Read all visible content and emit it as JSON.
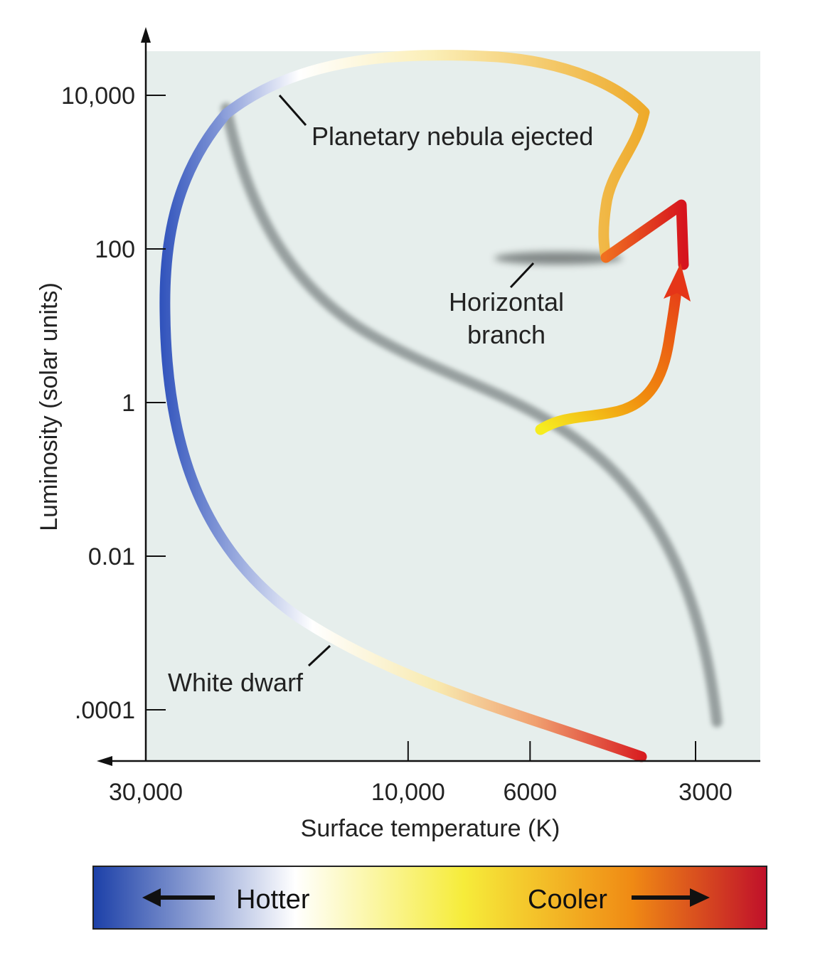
{
  "chart_data": {
    "type": "line",
    "xlabel": "Surface temperature (K)",
    "ylabel": "Luminosity (solar units)",
    "x_scale": "log, reversed",
    "y_scale": "log",
    "x_ticks": [
      {
        "value": 30000,
        "label": "30,000"
      },
      {
        "value": 10000,
        "label": "10,000"
      },
      {
        "value": 6000,
        "label": "6000"
      },
      {
        "value": 3000,
        "label": "3000"
      }
    ],
    "y_ticks": [
      {
        "value": 10000,
        "label": "10,000"
      },
      {
        "value": 100,
        "label": "100"
      },
      {
        "value": 1,
        "label": "1"
      },
      {
        "value": 0.01,
        "label": "0.01"
      },
      {
        "value": 0.0001,
        "label": ".0001"
      }
    ],
    "annotations": [
      {
        "text": "Planetary nebula ejected"
      },
      {
        "text": "Horizontal branch",
        "lines": [
          "Horizontal",
          "branch"
        ]
      },
      {
        "text": "White dwarf"
      }
    ],
    "color_bar": {
      "left_label": "Hotter",
      "right_label": "Cooler",
      "colors": [
        "#1c40a8",
        "#ffffff",
        "#f6ec3a",
        "#f08a14",
        "#c0102a"
      ]
    },
    "colors": {
      "panel_background": "#e6eeec",
      "main_sequence": "#8e9696",
      "white_dwarf_track_hot": "#2146b7",
      "track_cool": "#d81d20",
      "red_giant_track": "#e53d18"
    }
  }
}
